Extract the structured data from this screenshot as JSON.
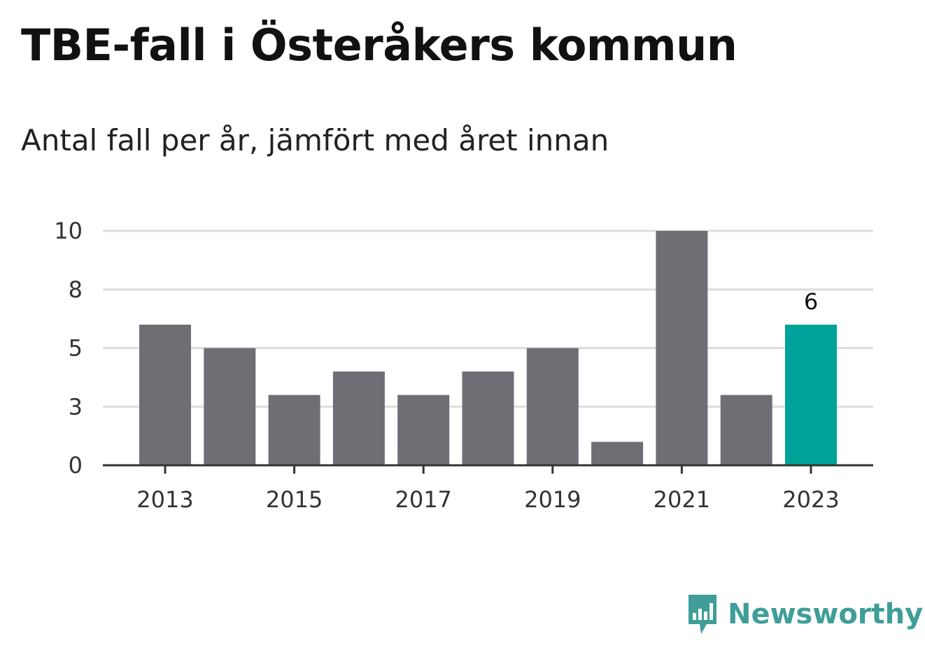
{
  "title": "TBE-fall i Österåkers kommun",
  "subtitle": "Antal fall per år, jämfört med året innan",
  "brand": {
    "name": "Newsworthy",
    "icon": "newsworthy-logo-icon",
    "color": "#3f9e98"
  },
  "colors": {
    "bar": "#6f6e75",
    "highlight": "#00a39a",
    "grid": "#dddddd",
    "axis": "#333333"
  },
  "chart_data": {
    "type": "bar",
    "categories": [
      2013,
      2014,
      2015,
      2016,
      2017,
      2018,
      2019,
      2020,
      2021,
      2022,
      2023
    ],
    "values": [
      6,
      5,
      3,
      4,
      3,
      4,
      5,
      1,
      10,
      3,
      6
    ],
    "highlight_index": 10,
    "data_labels": [
      {
        "index": 10,
        "text": "6"
      }
    ],
    "x_tick_labels": [
      "2013",
      "2015",
      "2017",
      "2019",
      "2021",
      "2023"
    ],
    "y_tick_labels": [
      "0",
      "3",
      "5",
      "8",
      "10"
    ],
    "y_tick_values": [
      0,
      2.5,
      5,
      7.5,
      10
    ],
    "ylim": [
      0,
      10
    ],
    "grid": true,
    "legend": "none",
    "xlabel": "",
    "ylabel": ""
  }
}
